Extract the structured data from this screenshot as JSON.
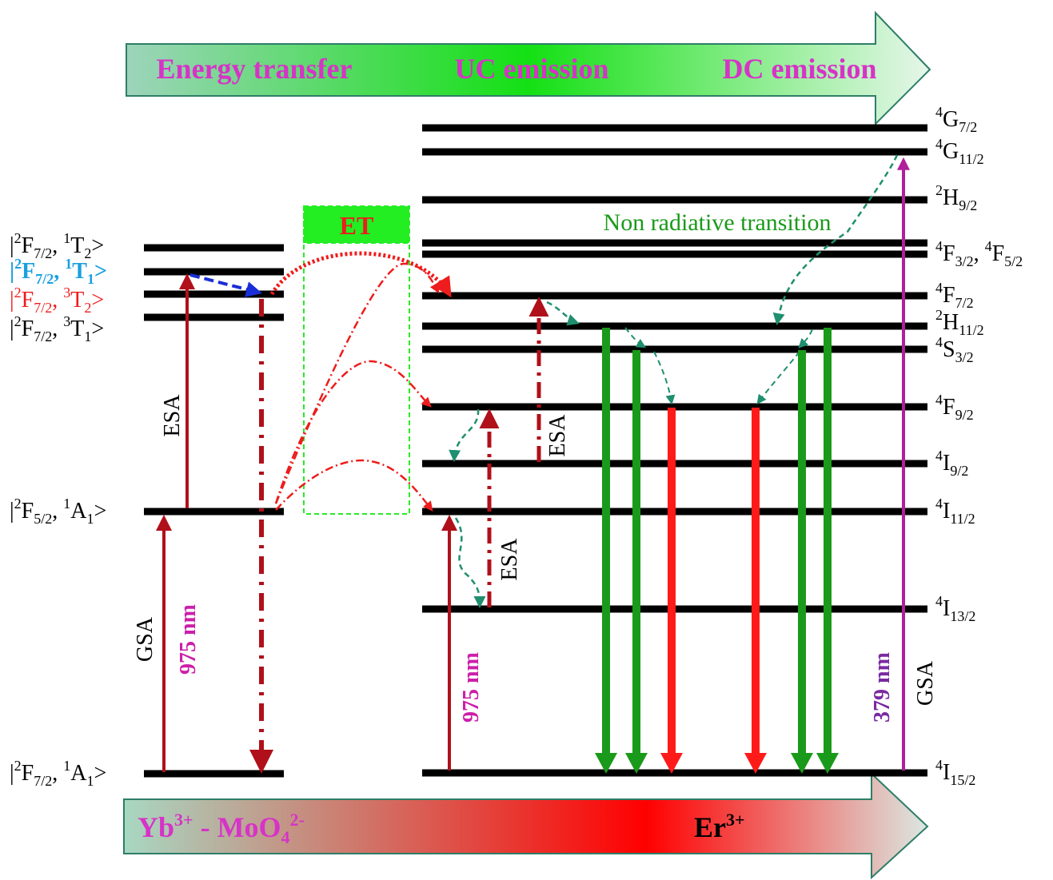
{
  "top_arrow": {
    "segments": [
      "Energy transfer",
      "UC emission",
      "DC emission"
    ],
    "label_color": "#d633c7",
    "gradient": [
      "#9dd4bb",
      "#14e014",
      "#e6f6ea"
    ],
    "border": "#2e7e68"
  },
  "bottom_arrow": {
    "left_label": "Yb",
    "left_sup": "3+",
    "left_mid": " - MoO",
    "left_sub": "4",
    "left_sup2": "2-",
    "right_label": "Er",
    "right_sup": "3+",
    "gradient": [
      "#a8d8c2",
      "#ff0000",
      "#dbe8e2"
    ],
    "border": "#2e7e68"
  },
  "yb_levels": [
    {
      "t1": "|",
      "s1": "2",
      "t2": "F",
      "b1": "7/2",
      "t3": ", ",
      "s2": "1",
      "t4": "T",
      "b2": "2",
      "t5": ">",
      "color": "#000000"
    },
    {
      "t1": "|",
      "s1": "2",
      "t2": "F",
      "b1": "7/2",
      "t3": ", ",
      "s2": "1",
      "t4": "T",
      "b2": "1",
      "t5": ">",
      "color": "#1aa0e0"
    },
    {
      "t1": "|",
      "s1": "2",
      "t2": "F",
      "b1": "7/2",
      "t3": ", ",
      "s2": "3",
      "t4": "T",
      "b2": "2",
      "t5": ">",
      "color": "#ee1c1c"
    },
    {
      "t1": "|",
      "s1": "2",
      "t2": "F",
      "b1": "7/2",
      "t3": ", ",
      "s2": "3",
      "t4": "T",
      "b2": "1",
      "t5": ">",
      "color": "#000000"
    },
    {
      "t1": "|",
      "s1": "2",
      "t2": "F",
      "b1": "5/2",
      "t3": ", ",
      "s2": "1",
      "t4": "A",
      "b2": "1",
      "t5": ">",
      "color": "#000000"
    },
    {
      "t1": "|",
      "s1": "2",
      "t2": "F",
      "b1": "7/2",
      "t3": ", ",
      "s2": "1",
      "t4": "A",
      "b2": "1",
      "t5": ">",
      "color": "#000000"
    }
  ],
  "er_levels": [
    {
      "s": "4",
      "t": "G",
      "b": "7/2"
    },
    {
      "s": "4",
      "t": "G",
      "b": "11/2"
    },
    {
      "s": "2",
      "t": "H",
      "b": "9/2"
    },
    {
      "s": "4",
      "t": "F",
      "b": "3/2",
      "mid": ", ",
      "s2": "4",
      "t2": "F",
      "b2": "5/2"
    },
    {
      "s": "4",
      "t": "F",
      "b": "7/2"
    },
    {
      "s": "2",
      "t": "H",
      "b": "11/2"
    },
    {
      "s": "4",
      "t": "S",
      "b": "3/2"
    },
    {
      "s": "4",
      "t": "F",
      "b": "9/2"
    },
    {
      "s": "4",
      "t": "I",
      "b": "9/2"
    },
    {
      "s": "4",
      "t": "I",
      "b": "11/2"
    },
    {
      "s": "4",
      "t": "I",
      "b": "13/2"
    },
    {
      "s": "4",
      "t": "I",
      "b": "15/2"
    }
  ],
  "et_label": "ET",
  "et_box_color": "#22ee22",
  "nonrad_label": "Non radiative transition",
  "nonrad_color": "#1a9a1a",
  "labels": {
    "esa_yb": "ESA",
    "gsa_yb": "GSA",
    "nm_yb": "975 nm",
    "esa_er1": "ESA",
    "esa_er2": "ESA",
    "nm_er": "975 nm",
    "nm_379": "379 nm",
    "gsa_er": "GSA"
  },
  "colors": {
    "excitation": "#b0101a",
    "et_arrows": "#ee1c1c",
    "green_emission": "#1a9a1a",
    "red_emission": "#ff1a1a",
    "violet": "#b0209a",
    "nm_magenta": "#cc1faa",
    "nm_violet": "#7a2aa0",
    "blue_relax": "#1a2ed8",
    "teal_relax": "#1f8f6f"
  }
}
